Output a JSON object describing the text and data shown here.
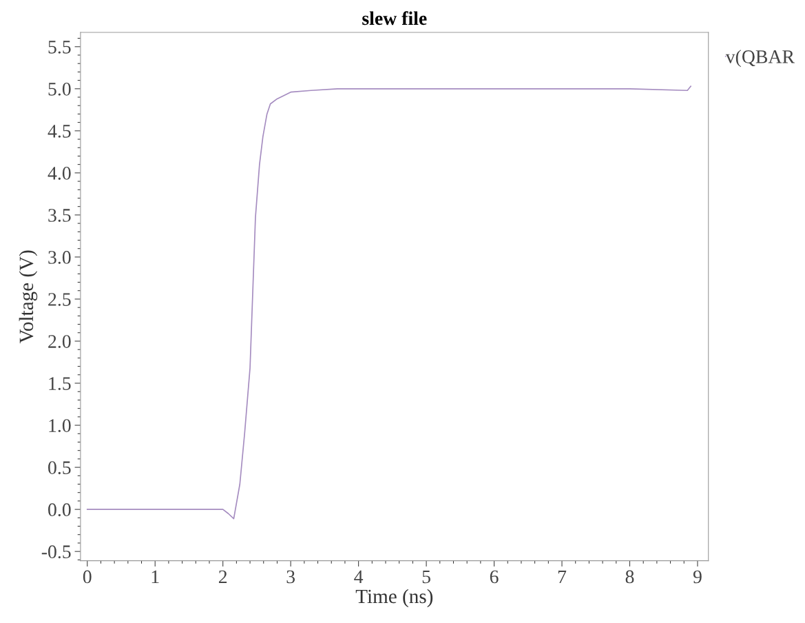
{
  "chart_data": {
    "type": "line",
    "title": "slew file",
    "xlabel": "Time (ns)",
    "ylabel": "Voltage (V)",
    "x": [
      0,
      1,
      2.0,
      2.08,
      2.16,
      2.25,
      2.32,
      2.4,
      2.48,
      2.54,
      2.59,
      2.65,
      2.7,
      2.8,
      3.0,
      3.3,
      3.69,
      5,
      6,
      7,
      8,
      8.85,
      8.9
    ],
    "series": [
      {
        "name": "v(QBAR",
        "color": "#a58cc0",
        "values": [
          0.0,
          0.0,
          0.0,
          -0.05,
          -0.11,
          0.3,
          0.9,
          1.68,
          3.47,
          4.1,
          4.43,
          4.7,
          4.82,
          4.88,
          4.96,
          4.98,
          5.0,
          5.0,
          5.0,
          5.0,
          5.0,
          4.98,
          5.03
        ]
      }
    ],
    "xlim": [
      -0.1,
      9.16
    ],
    "ylim": [
      -0.61,
      5.67
    ],
    "xticks": [
      0,
      1,
      2,
      3,
      4,
      5,
      6,
      7,
      8,
      9
    ],
    "yticks": [
      {
        "value": -0.5,
        "label": "-0.5"
      },
      {
        "value": 0,
        "label": "0.0"
      },
      {
        "value": 0.5,
        "label": "0.5"
      },
      {
        "value": 1,
        "label": "1.0"
      },
      {
        "value": 1.5,
        "label": "1.5"
      },
      {
        "value": 2,
        "label": "2.0"
      },
      {
        "value": 2.5,
        "label": "2.5"
      },
      {
        "value": 3,
        "label": "3.0"
      },
      {
        "value": 3.5,
        "label": "3.5"
      },
      {
        "value": 4,
        "label": "4.0"
      },
      {
        "value": 4.5,
        "label": "4.5"
      },
      {
        "value": 5,
        "label": "5.0"
      },
      {
        "value": 5.5,
        "label": "5.5"
      }
    ],
    "legend": "top right",
    "marker": "none",
    "line_style": "solid",
    "grid": false
  }
}
